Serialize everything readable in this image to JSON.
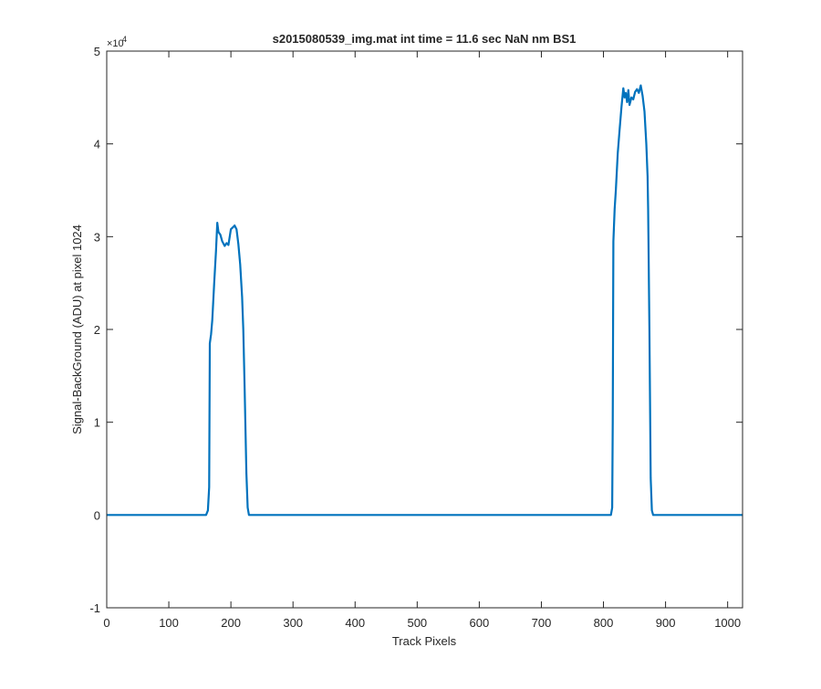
{
  "chart_data": {
    "type": "line",
    "title": "s2015080539_img.mat int time = 11.6 sec  NaN nm BS1",
    "xlabel": "Track Pixels",
    "ylabel": "Signal-BackGround (ADU) at pixel 1024",
    "xlim": [
      0,
      1024
    ],
    "ylim": [
      -10000,
      50000
    ],
    "y_exponent_label": "×10",
    "y_exponent_power": "4",
    "xticks": [
      0,
      100,
      200,
      300,
      400,
      500,
      600,
      700,
      800,
      900,
      1000
    ],
    "xtick_labels": [
      "0",
      "100",
      "200",
      "300",
      "400",
      "500",
      "600",
      "700",
      "800",
      "900",
      "1000"
    ],
    "yticks": [
      -10000,
      0,
      10000,
      20000,
      30000,
      40000,
      50000
    ],
    "ytick_labels": [
      "-1",
      "0",
      "1",
      "2",
      "3",
      "4",
      "5"
    ],
    "grid": false,
    "line_color": "#0072BD",
    "series": [
      {
        "x": [
          0,
          160,
          163,
          165,
          166,
          168,
          170,
          173,
          176,
          178,
          180,
          183,
          186,
          190,
          193,
          196,
          200,
          203,
          206,
          209,
          212,
          215,
          218,
          220,
          222,
          225,
          227,
          229,
          232,
          240,
          400,
          600,
          800,
          812,
          814,
          815,
          816,
          818,
          820,
          823,
          826,
          829,
          832,
          834,
          836,
          838,
          840,
          842,
          845,
          848,
          851,
          854,
          857,
          860,
          863,
          866,
          869,
          871,
          872,
          874,
          876,
          878,
          880,
          890,
          1024
        ],
        "y": [
          0,
          0,
          500,
          3000,
          18500,
          19500,
          21000,
          25000,
          28500,
          31500,
          30500,
          30200,
          29500,
          29000,
          29300,
          29100,
          30800,
          31000,
          31200,
          30800,
          29200,
          27000,
          23500,
          20000,
          14000,
          4500,
          800,
          0,
          0,
          0,
          0,
          0,
          0,
          0,
          800,
          10000,
          29500,
          33000,
          35000,
          39000,
          41500,
          44000,
          46000,
          45000,
          45500,
          44500,
          45800,
          44200,
          45000,
          44800,
          45600,
          45900,
          45500,
          46300,
          45200,
          43500,
          40000,
          36500,
          33000,
          20000,
          4000,
          500,
          0,
          0,
          0
        ]
      }
    ]
  }
}
